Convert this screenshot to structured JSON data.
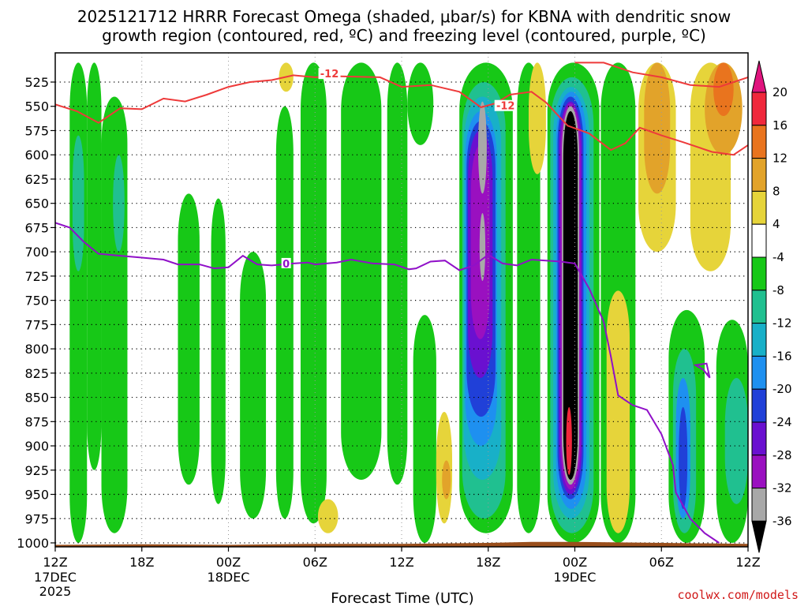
{
  "chart_data": {
    "type": "heatmap",
    "title_line1": "2025121712 HRRR Forecast Omega (shaded, μbar/s) for KBNA with dendritic snow",
    "title_line2": "growth region (contoured, red, ºC) and freezing level (contoured, purple, ºC)",
    "xlabel": "Forecast Time (UTC)",
    "credit": "coolwx.com/models",
    "x_ticks": [
      {
        "h": 0,
        "label": "12Z",
        "sub": "17DEC",
        "sub2": "2025"
      },
      {
        "h": 6,
        "label": "18Z",
        "sub": "",
        "sub2": ""
      },
      {
        "h": 12,
        "label": "00Z",
        "sub": "18DEC",
        "sub2": ""
      },
      {
        "h": 18,
        "label": "06Z",
        "sub": "",
        "sub2": ""
      },
      {
        "h": 24,
        "label": "12Z",
        "sub": "",
        "sub2": ""
      },
      {
        "h": 30,
        "label": "18Z",
        "sub": "",
        "sub2": ""
      },
      {
        "h": 36,
        "label": "00Z",
        "sub": "19DEC",
        "sub2": ""
      },
      {
        "h": 42,
        "label": "06Z",
        "sub": "",
        "sub2": ""
      },
      {
        "h": 48,
        "label": "12Z",
        "sub": "",
        "sub2": ""
      }
    ],
    "x_range_hours": [
      0,
      48
    ],
    "y_ticks_hpa": [
      525,
      550,
      575,
      600,
      625,
      650,
      675,
      700,
      725,
      750,
      775,
      800,
      825,
      850,
      875,
      900,
      925,
      950,
      975,
      1000
    ],
    "colorbar": {
      "labels": [
        "20",
        "16",
        "12",
        "8",
        "4",
        "-4",
        "-8",
        "-12",
        "-16",
        "-20",
        "-24",
        "-28",
        "-32",
        "-36"
      ],
      "bins": [
        {
          "lo": 20,
          "hi": 24,
          "color": "#e0147e"
        },
        {
          "lo": 16,
          "hi": 20,
          "color": "#f0283c"
        },
        {
          "lo": 12,
          "hi": 16,
          "color": "#e9741e"
        },
        {
          "lo": 8,
          "hi": 12,
          "color": "#e2a32a"
        },
        {
          "lo": 4,
          "hi": 8,
          "color": "#e6d43a"
        },
        {
          "lo": -4,
          "hi": 4,
          "color": "#ffffff"
        },
        {
          "lo": -8,
          "hi": -4,
          "color": "#17c817"
        },
        {
          "lo": -12,
          "hi": -8,
          "color": "#20c090"
        },
        {
          "lo": -16,
          "hi": -12,
          "color": "#18b0c8"
        },
        {
          "lo": -20,
          "hi": -16,
          "color": "#1e90f0"
        },
        {
          "lo": -24,
          "hi": -20,
          "color": "#2040d8"
        },
        {
          "lo": -28,
          "hi": -24,
          "color": "#6a10d0"
        },
        {
          "lo": -32,
          "hi": -28,
          "color": "#9a10c0"
        },
        {
          "lo": -36,
          "hi": -32,
          "color": "#a8a8a8"
        },
        {
          "lo": -40,
          "hi": -36,
          "color": "#000000"
        }
      ]
    },
    "omega_features": [
      {
        "t0": 1.0,
        "t1": 2.2,
        "p0": 505,
        "p1": 1000,
        "v": -6
      },
      {
        "t0": 2.2,
        "t1": 3.2,
        "p0": 505,
        "p1": 925,
        "v": -6
      },
      {
        "t0": 1.2,
        "t1": 2.0,
        "p0": 580,
        "p1": 720,
        "v": -12
      },
      {
        "t0": 3.2,
        "t1": 5.0,
        "p0": 540,
        "p1": 990,
        "v": -6
      },
      {
        "t0": 4.0,
        "t1": 4.8,
        "p0": 600,
        "p1": 700,
        "v": -10
      },
      {
        "t0": 8.5,
        "t1": 10.0,
        "p0": 640,
        "p1": 940,
        "v": -6
      },
      {
        "t0": 10.8,
        "t1": 11.8,
        "p0": 645,
        "p1": 960,
        "v": -6
      },
      {
        "t0": 12.8,
        "t1": 14.6,
        "p0": 700,
        "p1": 975,
        "v": -6
      },
      {
        "t0": 15.3,
        "t1": 16.5,
        "p0": 550,
        "p1": 975,
        "v": -6
      },
      {
        "t0": 15.5,
        "t1": 16.5,
        "p0": 505,
        "p1": 535,
        "v": 5
      },
      {
        "t0": 17.0,
        "t1": 18.8,
        "p0": 505,
        "p1": 980,
        "v": -6
      },
      {
        "t0": 18.2,
        "t1": 19.6,
        "p0": 955,
        "p1": 990,
        "v": 5
      },
      {
        "t0": 19.8,
        "t1": 22.6,
        "p0": 505,
        "p1": 935,
        "v": -6
      },
      {
        "t0": 23.0,
        "t1": 24.4,
        "p0": 505,
        "p1": 940,
        "v": -6
      },
      {
        "t0": 24.4,
        "t1": 26.2,
        "p0": 505,
        "p1": 590,
        "v": -6
      },
      {
        "t0": 24.8,
        "t1": 26.4,
        "p0": 765,
        "p1": 1000,
        "v": -6
      },
      {
        "t0": 26.4,
        "t1": 27.5,
        "p0": 865,
        "p1": 980,
        "v": 6
      },
      {
        "t0": 26.8,
        "t1": 27.4,
        "p0": 915,
        "p1": 955,
        "v": 11
      },
      {
        "t0": 28.0,
        "t1": 31.7,
        "p0": 505,
        "p1": 990,
        "v": -6
      },
      {
        "t0": 28.2,
        "t1": 31.2,
        "p0": 525,
        "p1": 975,
        "v": -10
      },
      {
        "t0": 28.3,
        "t1": 30.9,
        "p0": 540,
        "p1": 935,
        "v": -14
      },
      {
        "t0": 28.4,
        "t1": 30.6,
        "p0": 555,
        "p1": 900,
        "v": -18
      },
      {
        "t0": 28.5,
        "t1": 30.5,
        "p0": 565,
        "p1": 870,
        "v": -22
      },
      {
        "t0": 28.6,
        "t1": 30.3,
        "p0": 575,
        "p1": 830,
        "v": -26
      },
      {
        "t0": 28.8,
        "t1": 30.1,
        "p0": 590,
        "p1": 790,
        "v": -30
      },
      {
        "t0": 29.3,
        "t1": 29.9,
        "p0": 545,
        "p1": 640,
        "v": -34
      },
      {
        "t0": 29.4,
        "t1": 29.8,
        "p0": 660,
        "p1": 730,
        "v": -34
      },
      {
        "t0": 32.0,
        "t1": 33.6,
        "p0": 505,
        "p1": 990,
        "v": -6
      },
      {
        "t0": 32.8,
        "t1": 34.0,
        "p0": 505,
        "p1": 620,
        "v": 6
      },
      {
        "t0": 34.1,
        "t1": 37.7,
        "p0": 505,
        "p1": 1000,
        "v": -6
      },
      {
        "t0": 34.3,
        "t1": 37.3,
        "p0": 520,
        "p1": 990,
        "v": -10
      },
      {
        "t0": 34.5,
        "t1": 37.0,
        "p0": 530,
        "p1": 975,
        "v": -14
      },
      {
        "t0": 34.7,
        "t1": 36.8,
        "p0": 535,
        "p1": 965,
        "v": -18
      },
      {
        "t0": 34.8,
        "t1": 36.6,
        "p0": 540,
        "p1": 955,
        "v": -22
      },
      {
        "t0": 34.9,
        "t1": 36.5,
        "p0": 545,
        "p1": 950,
        "v": -26
      },
      {
        "t0": 35.0,
        "t1": 36.4,
        "p0": 547,
        "p1": 945,
        "v": -30
      },
      {
        "t0": 35.1,
        "t1": 36.3,
        "p0": 550,
        "p1": 940,
        "v": -34
      },
      {
        "t0": 35.2,
        "t1": 36.2,
        "p0": 555,
        "p1": 935,
        "v": -38
      },
      {
        "t0": 35.4,
        "t1": 35.8,
        "p0": 860,
        "p1": 930,
        "v": 18
      },
      {
        "t0": 37.8,
        "t1": 40.2,
        "p0": 505,
        "p1": 1000,
        "v": -6
      },
      {
        "t0": 38.2,
        "t1": 39.8,
        "p0": 740,
        "p1": 990,
        "v": 6
      },
      {
        "t0": 40.4,
        "t1": 43.0,
        "p0": 505,
        "p1": 700,
        "v": 5
      },
      {
        "t0": 40.8,
        "t1": 42.6,
        "p0": 505,
        "p1": 640,
        "v": 9
      },
      {
        "t0": 42.5,
        "t1": 45.0,
        "p0": 760,
        "p1": 1000,
        "v": -6
      },
      {
        "t0": 42.8,
        "t1": 44.4,
        "p0": 800,
        "p1": 990,
        "v": -12
      },
      {
        "t0": 43.0,
        "t1": 44.0,
        "p0": 830,
        "p1": 975,
        "v": -18
      },
      {
        "t0": 43.2,
        "t1": 43.8,
        "p0": 860,
        "p1": 965,
        "v": -22
      },
      {
        "t0": 44.0,
        "t1": 46.8,
        "p0": 505,
        "p1": 720,
        "v": 6
      },
      {
        "t0": 45.0,
        "t1": 47.6,
        "p0": 505,
        "p1": 600,
        "v": 9
      },
      {
        "t0": 45.6,
        "t1": 47.0,
        "p0": 505,
        "p1": 560,
        "v": 13
      },
      {
        "t0": 45.8,
        "t1": 48.0,
        "p0": 770,
        "p1": 1000,
        "v": -6
      },
      {
        "t0": 46.4,
        "t1": 48.0,
        "p0": 830,
        "p1": 960,
        "v": -12
      }
    ],
    "growth_region_contours": [
      {
        "label": "-12",
        "label_h": 19.0,
        "label_p": 517,
        "points": [
          [
            0,
            548
          ],
          [
            1.5,
            555
          ],
          [
            3.0,
            567
          ],
          [
            4.5,
            552
          ],
          [
            6.0,
            553
          ],
          [
            7.5,
            542
          ],
          [
            9,
            545
          ],
          [
            10.5,
            538
          ],
          [
            12,
            530
          ],
          [
            13.5,
            525
          ],
          [
            15,
            523
          ],
          [
            16.5,
            518
          ],
          [
            18,
            520
          ],
          [
            19.5,
            519
          ],
          [
            22.5,
            520
          ],
          [
            24,
            530
          ],
          [
            26,
            528
          ],
          [
            28,
            535
          ],
          [
            29.5,
            551
          ],
          [
            30.5,
            547
          ],
          [
            31.5,
            538
          ],
          [
            33,
            535
          ],
          [
            34,
            546
          ],
          [
            35.5,
            570
          ],
          [
            37,
            578
          ],
          [
            38.5,
            595
          ],
          [
            39.5,
            588
          ],
          [
            40.5,
            572
          ],
          [
            42,
            580
          ],
          [
            43.5,
            587
          ],
          [
            45.5,
            597
          ],
          [
            47,
            600
          ],
          [
            48,
            590
          ]
        ]
      },
      {
        "label": "-12",
        "label_h": 31.2,
        "label_p": 550,
        "points": [
          [
            36.0,
            505
          ],
          [
            38,
            505
          ],
          [
            40,
            515
          ],
          [
            42,
            520
          ],
          [
            44,
            528
          ],
          [
            46,
            530
          ],
          [
            48,
            520
          ]
        ]
      }
    ],
    "freezing_contour": {
      "label": "0",
      "label_h": 16.0,
      "label_p": 712,
      "points": [
        [
          0,
          670
        ],
        [
          1,
          675
        ],
        [
          2,
          690
        ],
        [
          3,
          702
        ],
        [
          4.5,
          704
        ],
        [
          6,
          706
        ],
        [
          7.5,
          708
        ],
        [
          8.5,
          713
        ],
        [
          10,
          713
        ],
        [
          11,
          717
        ],
        [
          12,
          716
        ],
        [
          13,
          704
        ],
        [
          14,
          713
        ],
        [
          15,
          714
        ],
        [
          16.5,
          712
        ],
        [
          17.5,
          711
        ],
        [
          18,
          713
        ],
        [
          19.5,
          711
        ],
        [
          20.5,
          708
        ],
        [
          22,
          712
        ],
        [
          23.5,
          713
        ],
        [
          24.5,
          718
        ],
        [
          25,
          717
        ],
        [
          26,
          710
        ],
        [
          27,
          709
        ],
        [
          28,
          719
        ],
        [
          29,
          714
        ],
        [
          30,
          703
        ],
        [
          31,
          712
        ],
        [
          32,
          714
        ],
        [
          33,
          708
        ],
        [
          34,
          709
        ],
        [
          35,
          710
        ],
        [
          36,
          712
        ],
        [
          37,
          738
        ],
        [
          38,
          772
        ],
        [
          38.5,
          808
        ],
        [
          39,
          848
        ],
        [
          40,
          858
        ],
        [
          41,
          863
        ],
        [
          42,
          888
        ],
        [
          42.8,
          920
        ],
        [
          43,
          948
        ],
        [
          44,
          975
        ],
        [
          45,
          990
        ],
        [
          46,
          1000
        ]
      ]
    },
    "small_purple_loop": {
      "h": 44.8,
      "p": 820
    }
  }
}
